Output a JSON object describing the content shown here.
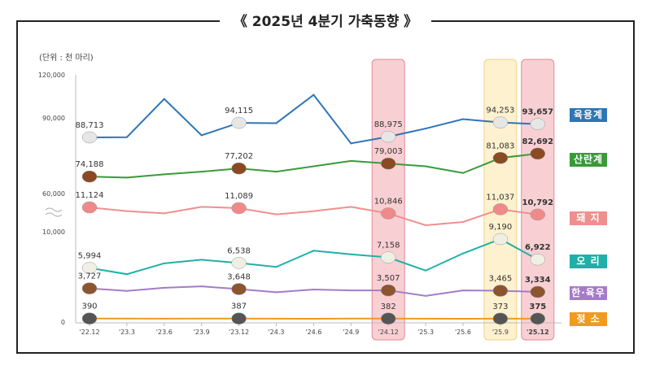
{
  "title": "《 2025년 4분기 가축동향 》",
  "unit": "(단위 : 천 마리)",
  "chart_data": {
    "type": "line",
    "title": "2025년 4분기 가축동향",
    "ylabel": "(단위 : 천 마리)",
    "y_ticks": [
      "120,000",
      "90,000",
      "60,000",
      "10,000",
      "0"
    ],
    "y_axis_broken": true,
    "grid": false,
    "legend_placement": "right",
    "categories": [
      "'22.12",
      "'23.3",
      "'23.6",
      "'23.9",
      "'23.12",
      "'24.3",
      "'24.6",
      "'24.9",
      "'24.12",
      "'25.3",
      "'25.6",
      "'25.9",
      "'25.12"
    ],
    "highlighted_categories": [
      "'24.12",
      "'25.9",
      "'25.12"
    ],
    "labeled_indices": [
      0,
      4,
      8,
      11,
      12
    ],
    "series": [
      {
        "name": "육용계",
        "color": "#2e75b6",
        "icon": "broiler-chicken-icon",
        "values": [
          88713,
          88800,
          103000,
          89500,
          94115,
          94000,
          104500,
          86500,
          88975,
          92000,
          95500,
          94253,
          93657
        ],
        "labels": [
          "88,713",
          "94,115",
          "88,975",
          "94,253",
          "93,657"
        ]
      },
      {
        "name": "산란계",
        "color": "#3a9a3a",
        "icon": "hen-icon",
        "values": [
          74188,
          73800,
          75000,
          76000,
          77202,
          76000,
          78000,
          80000,
          79003,
          78000,
          75500,
          81083,
          82692
        ],
        "labels": [
          "74,188",
          "77,202",
          "79,003",
          "81,083",
          "82,692"
        ]
      },
      {
        "name": "돼 지",
        "color": "#ef8f8f",
        "icon": "pig-icon",
        "values": [
          11124,
          10950,
          10850,
          11150,
          11089,
          10800,
          10950,
          11150,
          10846,
          10300,
          10450,
          11037,
          10792
        ],
        "labels": [
          "11,124",
          "11,089",
          "10,846",
          "11,037",
          "10,792"
        ]
      },
      {
        "name": "오 리",
        "color": "#1fb0a8",
        "icon": "duck-icon",
        "values": [
          5994,
          5300,
          6500,
          6900,
          6538,
          6100,
          7900,
          7500,
          7158,
          5700,
          7600,
          9190,
          6922
        ],
        "labels": [
          "5,994",
          "6,538",
          "7,158",
          "9,190",
          "6,922"
        ]
      },
      {
        "name": "한·육우",
        "color": "#a57bc9",
        "icon": "cow-icon",
        "values": [
          3727,
          3450,
          3800,
          3950,
          3648,
          3300,
          3600,
          3500,
          3507,
          2900,
          3500,
          3465,
          3334
        ],
        "labels": [
          "3,727",
          "3,648",
          "3,507",
          "3,465",
          "3,334"
        ]
      },
      {
        "name": "젖 소",
        "color": "#ef9a20",
        "icon": "dairy-cow-icon",
        "values": [
          390,
          385,
          370,
          386,
          387,
          375,
          365,
          378,
          382,
          368,
          365,
          373,
          375
        ],
        "labels": [
          "390",
          "387",
          "382",
          "373",
          "375"
        ]
      }
    ]
  }
}
